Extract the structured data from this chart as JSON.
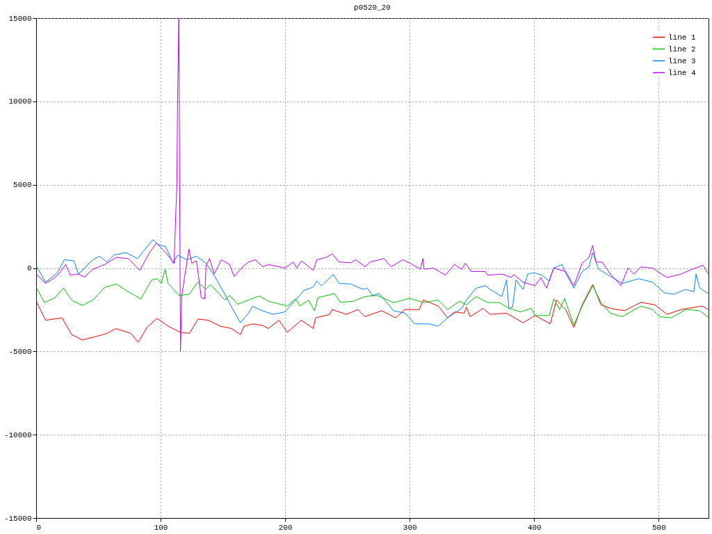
{
  "chart_data": {
    "type": "line",
    "title": "p0520_20",
    "xlim": [
      0,
      540
    ],
    "ylim": [
      -15000,
      15000
    ],
    "xticks": [
      0,
      100,
      200,
      300,
      400,
      500
    ],
    "yticks": [
      -15000,
      -10000,
      -5000,
      0,
      5000,
      10000,
      15000
    ],
    "grid": true,
    "legend": "top right",
    "line_style": "solid",
    "marker": "none",
    "series": [
      {
        "name": "line 1",
        "color": "#ff0000",
        "x": [
          0,
          7.6,
          20.8,
          28.4,
          37,
          47,
          57,
          64,
          76,
          82,
          89,
          97,
          106,
          115.5,
          123,
          130,
          138,
          148,
          157,
          164,
          167,
          174,
          182,
          186.5,
          195,
          201.7,
          213,
          222.5,
          224.4,
          235.8,
          237.7,
          249,
          258.5,
          264,
          277.5,
          288.8,
          296,
          307.6,
          311,
          322.9,
          330.4,
          336,
          343.7,
          345.6,
          348.5,
          358.9,
          364.6,
          377.8,
          391,
          400.6,
          412.9,
          417.9,
          425.2,
          431.8,
          438.5,
          447,
          453.6,
          461.2,
          472.5,
          485.7,
          497,
          506.6,
          518,
          535,
          539.8
        ],
        "values": [
          -1990,
          -3130,
          -2990,
          -3990,
          -4310,
          -4130,
          -3920,
          -3630,
          -3920,
          -4450,
          -3560,
          -3020,
          -3490,
          -3850,
          -3920,
          -3060,
          -3130,
          -3490,
          -3630,
          -3990,
          -3490,
          -3350,
          -3450,
          -3630,
          -3130,
          -3850,
          -3130,
          -3630,
          -2990,
          -2780,
          -2490,
          -2780,
          -2490,
          -2920,
          -2560,
          -2990,
          -2490,
          -2490,
          -1920,
          -2280,
          -2990,
          -2630,
          -2710,
          -2350,
          -2920,
          -2420,
          -2780,
          -2710,
          -3280,
          -2850,
          -3350,
          -1920,
          -2490,
          -3560,
          -2210,
          -990,
          -2210,
          -2420,
          -2560,
          -2060,
          -2210,
          -2780,
          -2490,
          -2280,
          -2490
        ]
      },
      {
        "name": "line 2",
        "color": "#00c000",
        "x": [
          0,
          6.6,
          15,
          22,
          28.4,
          37,
          45.5,
          55,
          64.4,
          73.9,
          84,
          92.8,
          97.5,
          100.4,
          103.6,
          106,
          114.6,
          123,
          129.7,
          136.4,
          140,
          151.5,
          155.3,
          162,
          170.5,
          179,
          186.5,
          201.7,
          208.3,
          212,
          218.7,
          223.5,
          226.3,
          239.6,
          244.3,
          254.8,
          264.3,
          273.7,
          287,
          300,
          311.4,
          322.9,
          330.4,
          339.9,
          345.6,
          353.2,
          362.7,
          372,
          379.7,
          389,
          397.7,
          400.6,
          412,
          415.8,
          420.5,
          424.3,
          431.8,
          438.5,
          447,
          453.6,
          461.2,
          470.6,
          485.7,
          495,
          500.8,
          510.3,
          521.6,
          533,
          539.8
        ],
        "values": [
          -1140,
          -2070,
          -1780,
          -1210,
          -1920,
          -2250,
          -1920,
          -1170,
          -960,
          -1420,
          -1850,
          -710,
          -640,
          -920,
          -70,
          -920,
          -1640,
          -1570,
          -850,
          -1280,
          -990,
          -1920,
          -1640,
          -2170,
          -1920,
          -1680,
          -1990,
          -2280,
          -1850,
          -2280,
          -1920,
          -2560,
          -1780,
          -1530,
          -2070,
          -1990,
          -1710,
          -1640,
          -2070,
          -1820,
          -2070,
          -1920,
          -2490,
          -1990,
          -2210,
          -1710,
          -2070,
          -2070,
          -2420,
          -2630,
          -2420,
          -2850,
          -2850,
          -1850,
          -2490,
          -1820,
          -3420,
          -2280,
          -1060,
          -2070,
          -2710,
          -2920,
          -2280,
          -2490,
          -2920,
          -2990,
          -2490,
          -2560,
          -2960
        ]
      },
      {
        "name": "line 3",
        "color": "#0080ff",
        "x": [
          0,
          7.6,
          17,
          22.7,
          30.3,
          34,
          45.5,
          51,
          56.8,
          62.5,
          72,
          81.4,
          93.8,
          97.5,
          104,
          110,
          113.6,
          121,
          128.8,
          136.4,
          144,
          151.5,
          157,
          164,
          170.5,
          174,
          179,
          190.3,
          199.8,
          207.4,
          215,
          222.5,
          225.4,
          229.2,
          238.6,
          243.3,
          252.8,
          262.3,
          266,
          270,
          275.6,
          287,
          296.4,
          304,
          315.3,
          322.9,
          330.4,
          341.8,
          345.6,
          353.2,
          360.8,
          364.6,
          374,
          377.8,
          379.7,
          382.6,
          385.4,
          391,
          394.9,
          399.6,
          406.3,
          411.9,
          415.7,
          422.3,
          425.2,
          431.8,
          438.5,
          444,
          447,
          451.7,
          461.2,
          470.6,
          483.9,
          495,
          504.6,
          512.2,
          521.6,
          528.2,
          530,
          533,
          539.8
        ],
        "values": [
          140,
          -850,
          -280,
          500,
          430,
          -360,
          500,
          710,
          360,
          780,
          930,
          570,
          1710,
          1420,
          1280,
          290,
          780,
          500,
          710,
          290,
          -570,
          -1570,
          -2350,
          -3280,
          -2710,
          -2280,
          -2490,
          -2780,
          -2630,
          -1990,
          -1350,
          -1140,
          -780,
          -1060,
          -390,
          -920,
          -960,
          -1280,
          -1210,
          -1640,
          -1530,
          -2560,
          -2710,
          -3350,
          -3350,
          -3490,
          -2990,
          -2420,
          -1920,
          -1210,
          -1060,
          -1280,
          -1710,
          -710,
          -2420,
          -2350,
          -710,
          -1280,
          -360,
          -280,
          -430,
          -780,
          0,
          210,
          -280,
          -1210,
          -210,
          70,
          930,
          -70,
          -500,
          -920,
          -640,
          -850,
          -1490,
          -1570,
          -1280,
          -1420,
          -360,
          -1210,
          -1530
        ]
      },
      {
        "name": "line 4",
        "color": "#c000ff",
        "x": [
          0,
          7.6,
          15,
          19,
          23.7,
          27.5,
          34,
          38.8,
          45.5,
          55,
          64.4,
          73.9,
          83.3,
          91,
          96.6,
          104,
          110.8,
          112,
          113,
          113.6,
          114.6,
          115.9,
          117,
          119.3,
          122.7,
          125,
          128.8,
          132.6,
          135.4,
          136.4,
          139.2,
          143,
          148.7,
          155.3,
          159,
          166.7,
          170.5,
          176,
          182,
          186.5,
          199.8,
          206.4,
          209.3,
          213,
          222.5,
          225.4,
          233,
          237.7,
          243.3,
          252.8,
          256.6,
          264.3,
          268,
          279.4,
          285,
          294.5,
          300.2,
          308.7,
          310.6,
          311.6,
          319.1,
          328.6,
          336,
          341.8,
          344.7,
          349.4,
          360.8,
          362.7,
          374,
          381.6,
          383.5,
          391,
          400.6,
          405.3,
          410,
          415.7,
          425.2,
          431.8,
          438.5,
          444,
          447,
          449.6,
          454.5,
          461.2,
          469.7,
          475.3,
          480,
          485.7,
          495,
          506.6,
          518,
          527,
          535.6,
          539.8
        ],
        "values": [
          -360,
          -920,
          -570,
          -280,
          210,
          -430,
          -360,
          -540,
          -70,
          210,
          640,
          570,
          -140,
          930,
          1500,
          930,
          290,
          2990,
          5000,
          10260,
          15000,
          -5000,
          -1640,
          -500,
          1140,
          290,
          430,
          -1780,
          -1850,
          140,
          570,
          -360,
          500,
          210,
          -500,
          140,
          360,
          500,
          70,
          210,
          0,
          360,
          0,
          430,
          -140,
          500,
          640,
          850,
          360,
          320,
          500,
          70,
          360,
          570,
          70,
          500,
          290,
          -70,
          570,
          -70,
          0,
          -430,
          210,
          -70,
          290,
          -210,
          -210,
          -430,
          -360,
          -570,
          -390,
          -850,
          -1060,
          -570,
          -1210,
          0,
          -210,
          -1060,
          290,
          640,
          1350,
          360,
          360,
          -360,
          -1060,
          0,
          -360,
          70,
          0,
          -570,
          -360,
          -70,
          170,
          -360
        ]
      }
    ]
  }
}
